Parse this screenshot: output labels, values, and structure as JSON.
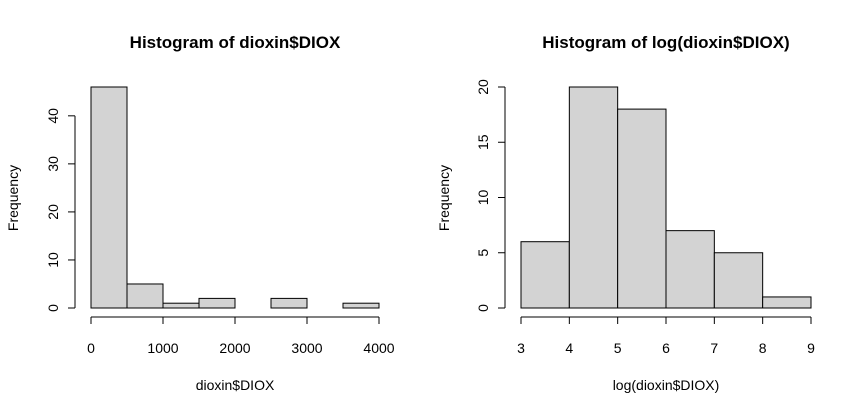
{
  "chart_data": [
    {
      "type": "bar",
      "title": "Histogram of dioxin$DIOX",
      "xlabel": "dioxin$DIOX",
      "ylabel": "Frequency",
      "breaks": [
        0,
        500,
        1000,
        1500,
        2000,
        2500,
        3000,
        3500,
        4000
      ],
      "values": [
        46,
        5,
        1,
        2,
        0,
        2,
        0,
        1
      ],
      "xlim": [
        0,
        4000
      ],
      "ylim": [
        0,
        46
      ],
      "xticks": [
        0,
        1000,
        2000,
        3000,
        4000
      ],
      "yticks": [
        0,
        10,
        20,
        30,
        40
      ],
      "bar_color": "#d3d3d3",
      "grid": false
    },
    {
      "type": "bar",
      "title": "Histogram of log(dioxin$DIOX)",
      "xlabel": "log(dioxin$DIOX)",
      "ylabel": "Frequency",
      "breaks": [
        3,
        4,
        5,
        6,
        7,
        8,
        9
      ],
      "values": [
        6,
        20,
        18,
        7,
        5,
        1
      ],
      "xlim": [
        3,
        9
      ],
      "ylim": [
        0,
        20
      ],
      "xticks": [
        3,
        4,
        5,
        6,
        7,
        8,
        9
      ],
      "yticks": [
        0,
        5,
        10,
        15,
        20
      ],
      "bar_color": "#d3d3d3",
      "grid": false
    }
  ]
}
